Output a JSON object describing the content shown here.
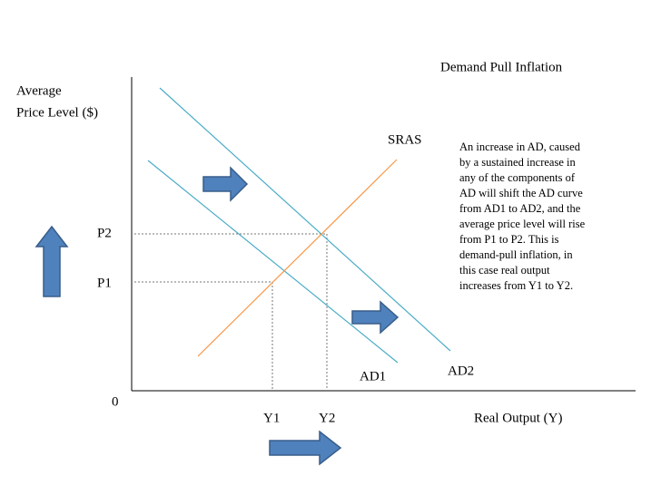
{
  "title": "Demand Pull Inflation",
  "y_axis_label": [
    "Average",
    "Price Level ($)"
  ],
  "x_axis_label": "Real Output (Y)",
  "origin_label": "0",
  "curves": {
    "sras": "SRAS",
    "ad1": "AD1",
    "ad2": "AD2"
  },
  "price_labels": [
    "P1",
    "P2"
  ],
  "output_labels": [
    "Y1",
    "Y2"
  ],
  "note": [
    "An increase in AD, caused",
    "by a sustained increase in",
    "any of the components of",
    "AD will shift the AD curve",
    "from AD1 to AD2, and the",
    "average price level will rise",
    "from P1 to P2. This is",
    "demand-pull inflation, in",
    "this case real output",
    "increases from Y1 to Y2."
  ]
}
